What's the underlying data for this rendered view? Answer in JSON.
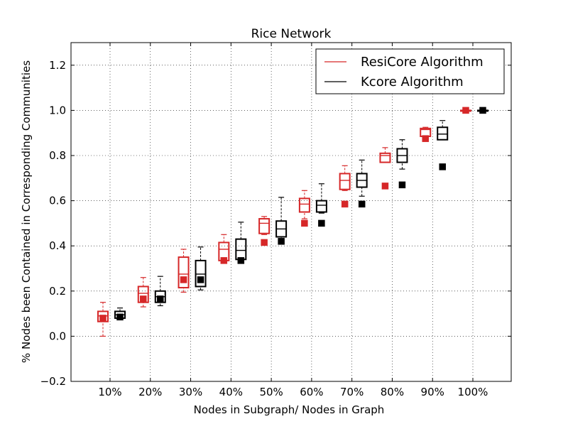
{
  "chart_data": {
    "type": "boxplot",
    "title": "Rice Network",
    "xlabel": "Nodes in Subgraph/ Nodes in Graph",
    "ylabel": "% Nodes been Contained in Corresponding Communities",
    "categories": [
      "10%",
      "20%",
      "30%",
      "40%",
      "50%",
      "60%",
      "70%",
      "80%",
      "90%",
      "100%"
    ],
    "ylim": [
      -0.2,
      1.3
    ],
    "yticks": [
      -0.2,
      0.0,
      0.2,
      0.4,
      0.6,
      0.8,
      1.0,
      1.2
    ],
    "ytick_labels": [
      "−0.2",
      "0.0",
      "0.2",
      "0.4",
      "0.6",
      "0.8",
      "1.0",
      "1.2"
    ],
    "grid": true,
    "legend_position": "top-right",
    "series": [
      {
        "name": "ResiCore Algorithm",
        "color": "#d62728",
        "boxes": [
          {
            "whislo": 0.0,
            "q1": 0.065,
            "med": 0.09,
            "q3": 0.11,
            "whishi": 0.15
          },
          {
            "whislo": 0.13,
            "q1": 0.15,
            "med": 0.19,
            "q3": 0.22,
            "whishi": 0.26
          },
          {
            "whislo": 0.195,
            "q1": 0.215,
            "med": 0.275,
            "q3": 0.35,
            "whishi": 0.385
          },
          {
            "whislo": 0.335,
            "q1": 0.335,
            "med": 0.385,
            "q3": 0.415,
            "whishi": 0.45
          },
          {
            "whislo": 0.45,
            "q1": 0.455,
            "med": 0.5,
            "q3": 0.52,
            "whishi": 0.53
          },
          {
            "whislo": 0.52,
            "q1": 0.55,
            "med": 0.585,
            "q3": 0.61,
            "whishi": 0.645
          },
          {
            "whislo": 0.645,
            "q1": 0.65,
            "med": 0.69,
            "q3": 0.72,
            "whishi": 0.755
          },
          {
            "whislo": 0.77,
            "q1": 0.77,
            "med": 0.8,
            "q3": 0.81,
            "whishi": 0.835
          },
          {
            "whislo": 0.885,
            "q1": 0.885,
            "med": 0.915,
            "q3": 0.92,
            "whishi": 0.925
          },
          {
            "whislo": 1.0,
            "q1": 1.0,
            "med": 1.0,
            "q3": 1.0,
            "whishi": 1.0
          }
        ],
        "markers": [
          0.08,
          0.165,
          0.25,
          0.335,
          0.415,
          0.5,
          0.585,
          0.665,
          0.875,
          1.0
        ]
      },
      {
        "name": "Kcore Algorithm",
        "color": "#000000",
        "boxes": [
          {
            "whislo": 0.08,
            "q1": 0.08,
            "med": 0.095,
            "q3": 0.11,
            "whishi": 0.125
          },
          {
            "whislo": 0.135,
            "q1": 0.15,
            "med": 0.175,
            "q3": 0.2,
            "whishi": 0.265
          },
          {
            "whislo": 0.205,
            "q1": 0.22,
            "med": 0.275,
            "q3": 0.335,
            "whishi": 0.395
          },
          {
            "whislo": 0.335,
            "q1": 0.34,
            "med": 0.38,
            "q3": 0.43,
            "whishi": 0.505
          },
          {
            "whislo": 0.42,
            "q1": 0.44,
            "med": 0.475,
            "q3": 0.51,
            "whishi": 0.615
          },
          {
            "whislo": 0.545,
            "q1": 0.55,
            "med": 0.58,
            "q3": 0.6,
            "whishi": 0.675
          },
          {
            "whislo": 0.62,
            "q1": 0.66,
            "med": 0.69,
            "q3": 0.72,
            "whishi": 0.78
          },
          {
            "whislo": 0.74,
            "q1": 0.77,
            "med": 0.8,
            "q3": 0.83,
            "whishi": 0.87
          },
          {
            "whislo": 0.87,
            "q1": 0.87,
            "med": 0.895,
            "q3": 0.925,
            "whishi": 0.955
          },
          {
            "whislo": 1.0,
            "q1": 1.0,
            "med": 1.0,
            "q3": 1.0,
            "whishi": 1.0
          }
        ],
        "markers": [
          0.085,
          0.165,
          0.25,
          0.335,
          0.42,
          0.5,
          0.585,
          0.67,
          0.75,
          1.0
        ]
      }
    ]
  }
}
